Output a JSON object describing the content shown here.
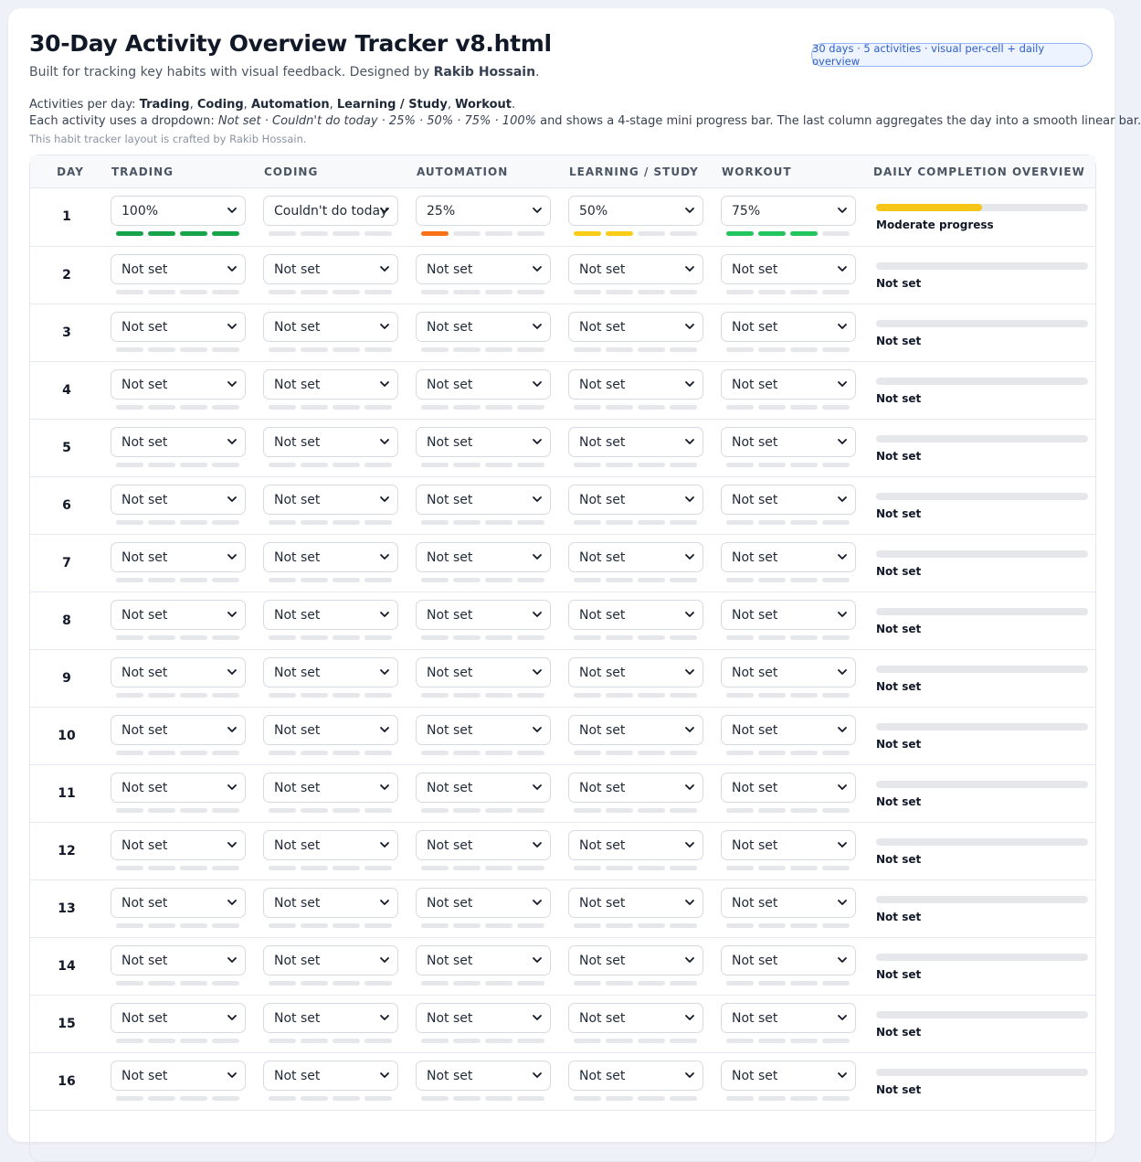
{
  "header": {
    "title": "30-Day Activity Overview Tracker v8.html",
    "subtitle_prefix": "Built for tracking key habits with visual feedback. Designed by ",
    "subtitle_author": "Rakib Hossain",
    "subtitle_suffix": ".",
    "badge": "30 days · 5 activities · visual per-cell + daily overview"
  },
  "description": {
    "line1_prefix": "Activities per day: ",
    "activities": [
      "Trading",
      "Coding",
      "Automation",
      "Learning / Study",
      "Workout"
    ],
    "line1_sep": ", ",
    "line1_end": ".",
    "line2_prefix": "Each activity uses a dropdown: ",
    "line2_options": "Not set · Couldn't do today · 25% · 50% · 75% · 100%",
    "line2_suffix": " and shows a 4-stage mini progress bar. The last column aggregates the day into a smooth linear bar.",
    "credit": "This habit tracker layout is crafted by Rakib Hossain."
  },
  "table": {
    "columns": {
      "day": "Day",
      "activities": [
        "Trading",
        "Coding",
        "Automation",
        "Learning / Study",
        "Workout"
      ],
      "overview": "Daily Completion Overview"
    },
    "stage_colors": {
      "25%": "#f97316",
      "50%": "#facc15",
      "75%": "#22c55e",
      "100%": "#16a34a"
    },
    "rows": [
      {
        "day": "1",
        "values": [
          "100%",
          "Couldn't do today",
          "25%",
          "50%",
          "75%"
        ],
        "overview_label": "Moderate progress",
        "overview_fraction": 0.5
      },
      {
        "day": "2",
        "values": [
          "Not set",
          "Not set",
          "Not set",
          "Not set",
          "Not set"
        ],
        "overview_label": "Not set",
        "overview_fraction": 0
      },
      {
        "day": "3",
        "values": [
          "Not set",
          "Not set",
          "Not set",
          "Not set",
          "Not set"
        ],
        "overview_label": "Not set",
        "overview_fraction": 0
      },
      {
        "day": "4",
        "values": [
          "Not set",
          "Not set",
          "Not set",
          "Not set",
          "Not set"
        ],
        "overview_label": "Not set",
        "overview_fraction": 0
      },
      {
        "day": "5",
        "values": [
          "Not set",
          "Not set",
          "Not set",
          "Not set",
          "Not set"
        ],
        "overview_label": "Not set",
        "overview_fraction": 0
      },
      {
        "day": "6",
        "values": [
          "Not set",
          "Not set",
          "Not set",
          "Not set",
          "Not set"
        ],
        "overview_label": "Not set",
        "overview_fraction": 0
      },
      {
        "day": "7",
        "values": [
          "Not set",
          "Not set",
          "Not set",
          "Not set",
          "Not set"
        ],
        "overview_label": "Not set",
        "overview_fraction": 0
      },
      {
        "day": "8",
        "values": [
          "Not set",
          "Not set",
          "Not set",
          "Not set",
          "Not set"
        ],
        "overview_label": "Not set",
        "overview_fraction": 0
      },
      {
        "day": "9",
        "values": [
          "Not set",
          "Not set",
          "Not set",
          "Not set",
          "Not set"
        ],
        "overview_label": "Not set",
        "overview_fraction": 0
      },
      {
        "day": "10",
        "values": [
          "Not set",
          "Not set",
          "Not set",
          "Not set",
          "Not set"
        ],
        "overview_label": "Not set",
        "overview_fraction": 0
      },
      {
        "day": "11",
        "values": [
          "Not set",
          "Not set",
          "Not set",
          "Not set",
          "Not set"
        ],
        "overview_label": "Not set",
        "overview_fraction": 0
      },
      {
        "day": "12",
        "values": [
          "Not set",
          "Not set",
          "Not set",
          "Not set",
          "Not set"
        ],
        "overview_label": "Not set",
        "overview_fraction": 0
      },
      {
        "day": "13",
        "values": [
          "Not set",
          "Not set",
          "Not set",
          "Not set",
          "Not set"
        ],
        "overview_label": "Not set",
        "overview_fraction": 0
      },
      {
        "day": "14",
        "values": [
          "Not set",
          "Not set",
          "Not set",
          "Not set",
          "Not set"
        ],
        "overview_label": "Not set",
        "overview_fraction": 0
      },
      {
        "day": "15",
        "values": [
          "Not set",
          "Not set",
          "Not set",
          "Not set",
          "Not set"
        ],
        "overview_label": "Not set",
        "overview_fraction": 0
      },
      {
        "day": "16",
        "values": [
          "Not set",
          "Not set",
          "Not set",
          "Not set",
          "Not set"
        ],
        "overview_label": "Not set",
        "overview_fraction": 0
      }
    ]
  }
}
